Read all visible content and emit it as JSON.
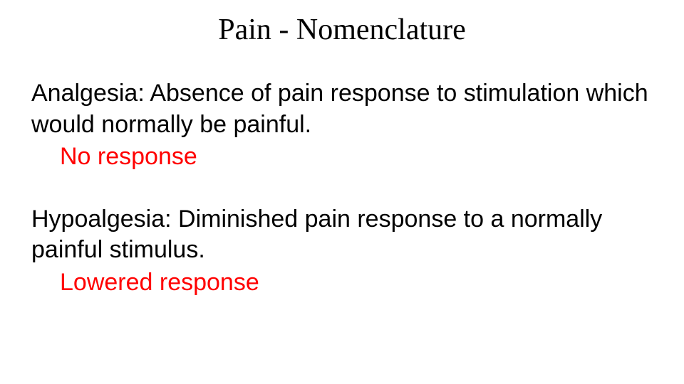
{
  "slide": {
    "title": "Pain - Nomenclature",
    "title_font": "Times New Roman",
    "title_fontsize": 42,
    "title_color": "#000000",
    "body_font": "Comic Sans MS",
    "body_fontsize": 34,
    "body_color": "#000000",
    "highlight_color": "#ff0000",
    "background_color": "#ffffff",
    "entries": [
      {
        "definition": "Analgesia: Absence of pain response to stimulation which would normally be painful.",
        "summary": "No response"
      },
      {
        "definition": "Hypoalgesia: Diminished pain response to a normally painful stimulus.",
        "summary": "Lowered response"
      }
    ]
  }
}
